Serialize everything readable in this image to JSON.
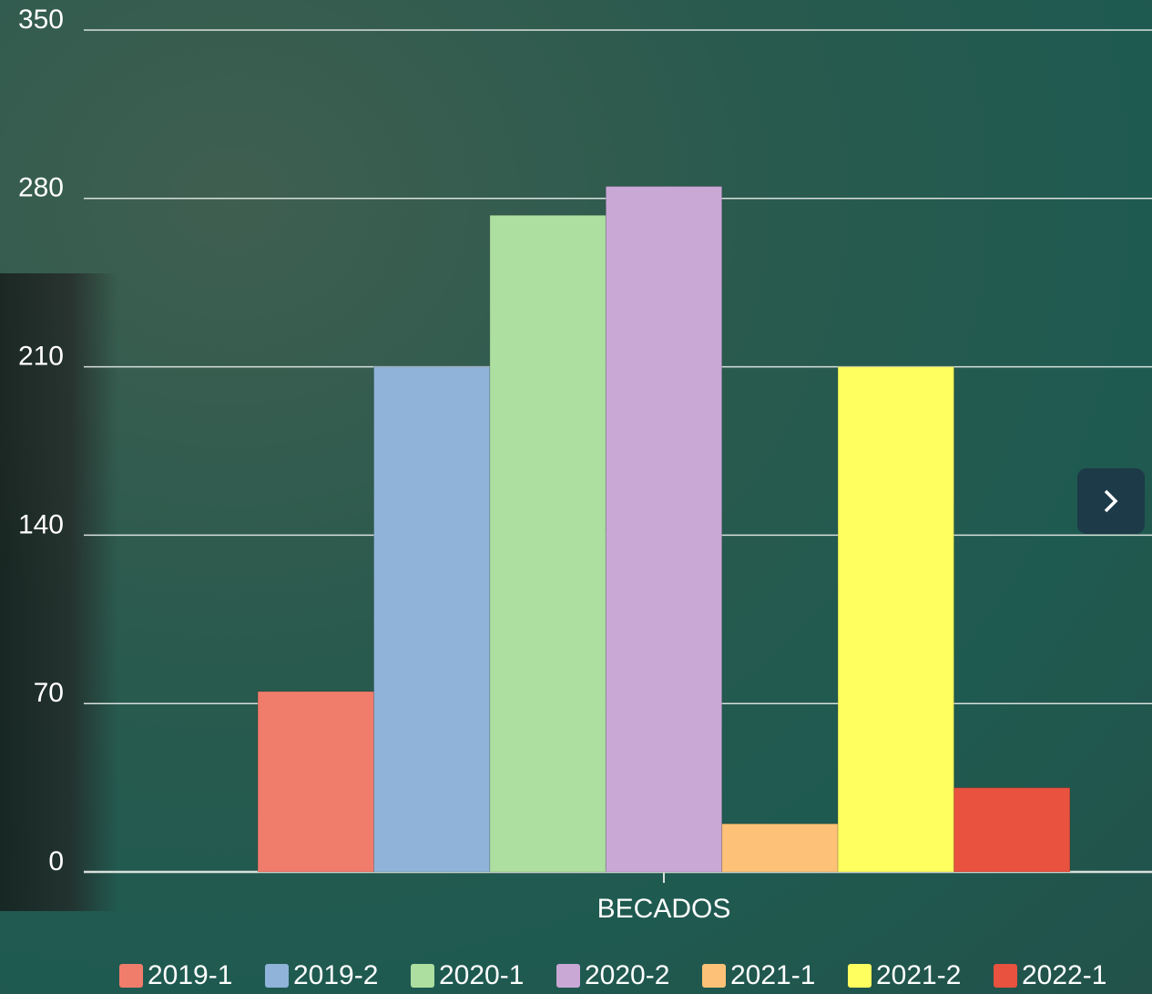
{
  "chart_data": {
    "type": "bar",
    "categories": [
      "BECADOS"
    ],
    "series": [
      {
        "name": "2019-1",
        "color": "#f07c6c",
        "values": [
          75
        ]
      },
      {
        "name": "2019-2",
        "color": "#8fb3d9",
        "values": [
          210
        ]
      },
      {
        "name": "2020-1",
        "color": "#addfa0",
        "values": [
          273
        ]
      },
      {
        "name": "2020-2",
        "color": "#c9a8d6",
        "values": [
          285
        ]
      },
      {
        "name": "2021-1",
        "color": "#fdc277",
        "values": [
          20
        ]
      },
      {
        "name": "2021-2",
        "color": "#ffff5f",
        "values": [
          210
        ]
      },
      {
        "name": "2022-1",
        "color": "#e8523f",
        "values": [
          35
        ]
      }
    ],
    "ylim": [
      0,
      350
    ],
    "yticks": [
      0,
      70,
      140,
      210,
      280,
      350
    ],
    "grid": true,
    "legend": "bottom"
  }
}
